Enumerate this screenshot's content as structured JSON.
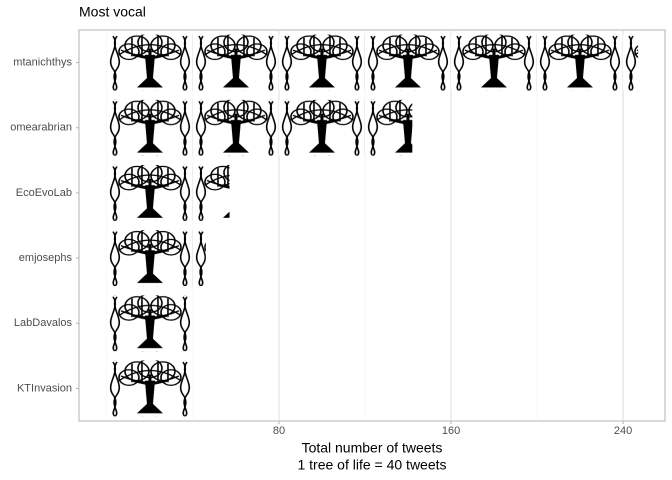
{
  "chart_data": {
    "type": "pictogram-bar",
    "title": "Most vocal",
    "xlabel": "Total number of tweets",
    "caption": "1 tree of life = 40 tweets",
    "categories": [
      "mtanichthys",
      "omearabrian",
      "EcoEvoLab",
      "emjosephs",
      "LabDavalos",
      "KTInvasion"
    ],
    "values": [
      247,
      142,
      57,
      46,
      39,
      39
    ],
    "xlim": [
      -13,
      259.5
    ],
    "xticks": [
      80,
      160,
      240
    ],
    "grid": true,
    "color": "#000000"
  }
}
